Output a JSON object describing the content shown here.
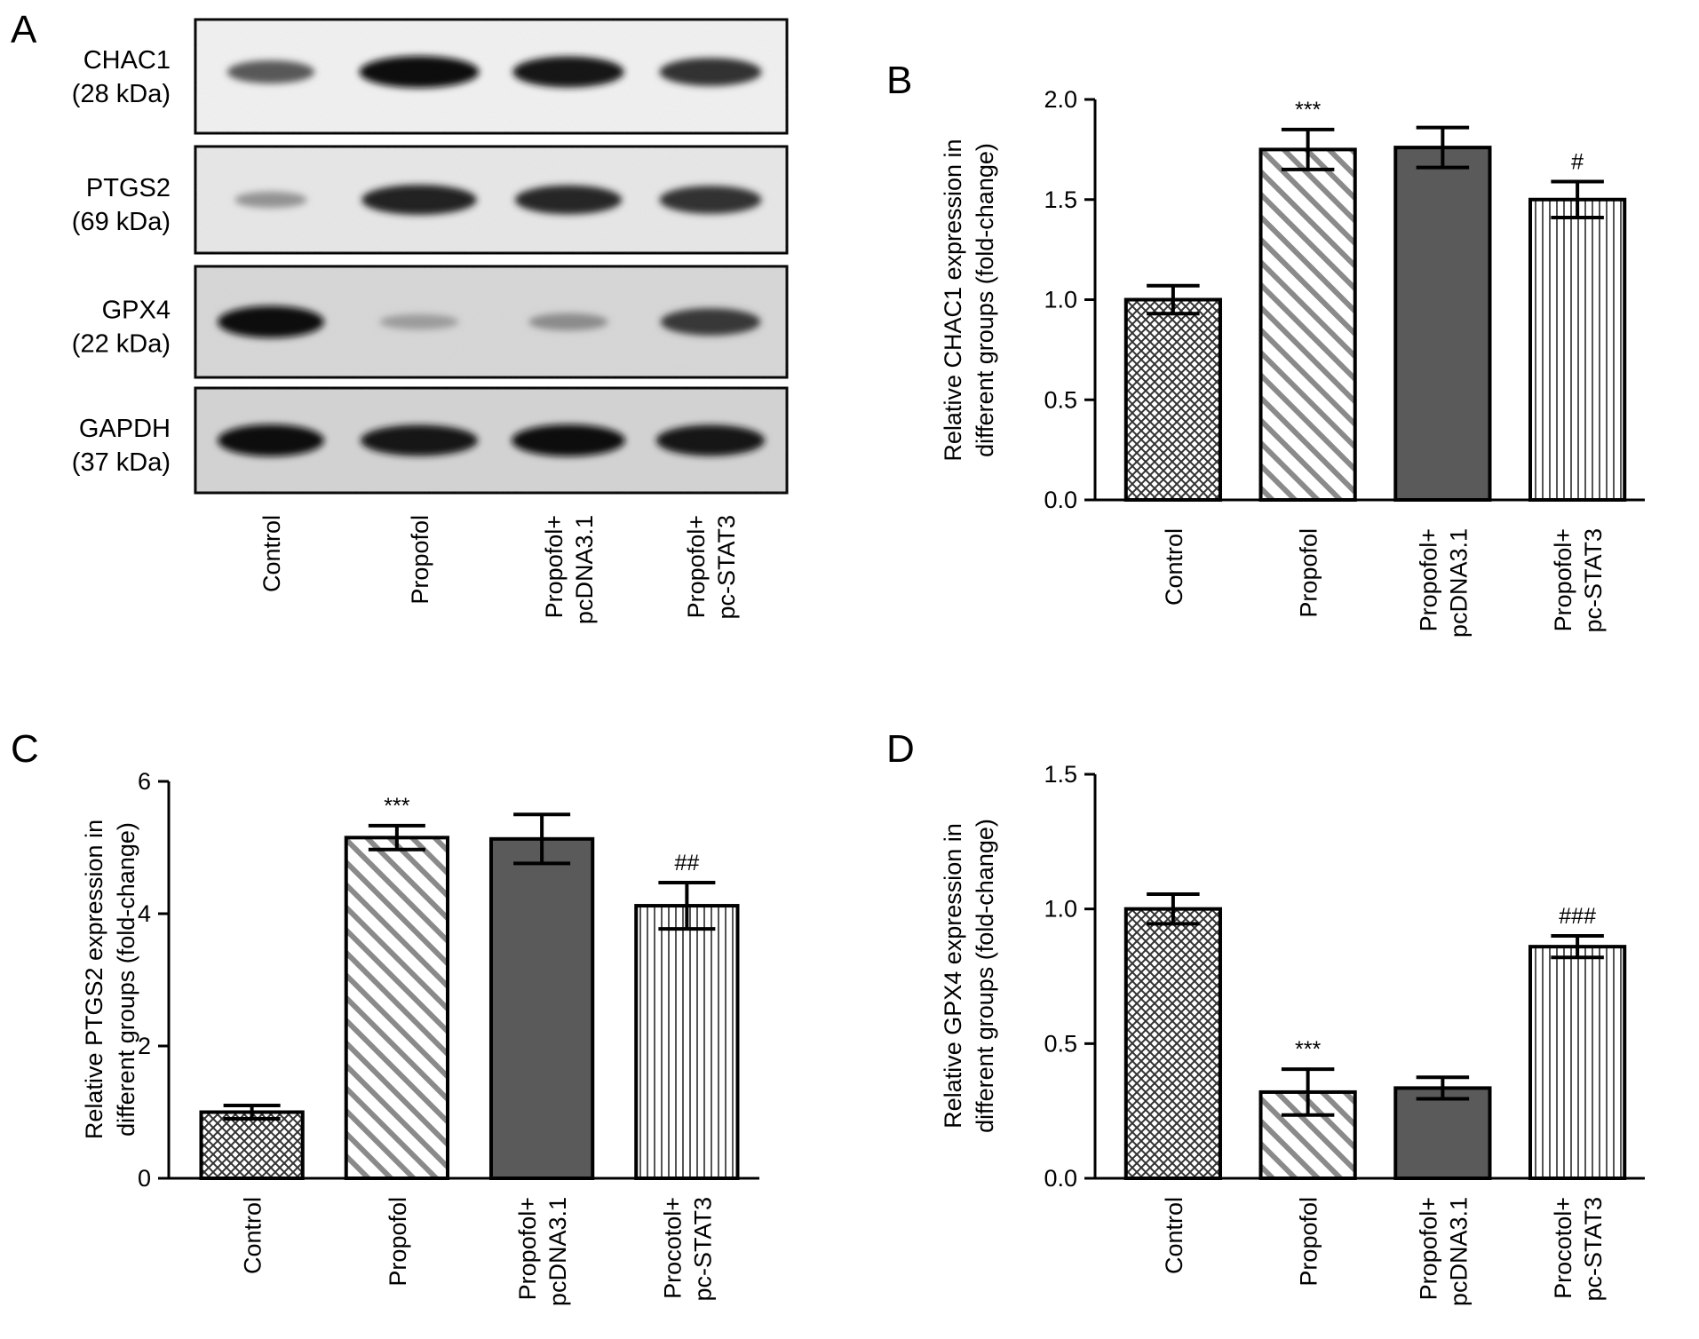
{
  "panels": {
    "a": "A",
    "b": "B",
    "c": "C",
    "d": "D"
  },
  "blot": {
    "bands": [
      {
        "name": "CHAC1",
        "size": "(28 kDa)",
        "intensities": [
          0.55,
          1.0,
          0.95,
          0.8
        ]
      },
      {
        "name": "PTGS2",
        "size": "(69 kDa)",
        "intensities": [
          0.2,
          0.9,
          0.85,
          0.8
        ]
      },
      {
        "name": "GPX4",
        "size": "(22 kDa)",
        "intensities": [
          1.0,
          0.15,
          0.25,
          0.75
        ]
      },
      {
        "name": "GAPDH",
        "size": "(37 kDa)",
        "intensities": [
          1.0,
          0.95,
          1.0,
          0.95
        ]
      }
    ],
    "lanes": [
      [
        "Control"
      ],
      [
        "Propofol"
      ],
      [
        "Propofol+",
        "pcDNA3.1"
      ],
      [
        "Propofol+",
        "pc-STAT3"
      ]
    ]
  },
  "chart_data": [
    {
      "type": "bar",
      "panel": "B",
      "categories": [
        [
          "Control"
        ],
        [
          "Propofol"
        ],
        [
          "Propofol+",
          "pcDNA3.1"
        ],
        [
          "Propofol+",
          "pc-STAT3"
        ]
      ],
      "values": [
        1.0,
        1.75,
        1.76,
        1.5
      ],
      "errors": [
        0.07,
        0.1,
        0.1,
        0.09
      ],
      "annotations": [
        "",
        "***",
        "",
        "#"
      ],
      "ylabel": [
        "Relative CHAC1 expression in",
        "different groups (fold-change)"
      ],
      "ylim": [
        0,
        2.0
      ],
      "yticks": [
        "0.0",
        "0.5",
        "1.0",
        "1.5",
        "2.0"
      ],
      "patterns": [
        "crosshatch",
        "diagonal",
        "solid",
        "vertical"
      ]
    },
    {
      "type": "bar",
      "panel": "C",
      "categories": [
        [
          "Control"
        ],
        [
          "Propofol"
        ],
        [
          "Propofol+",
          "pcDNA3.1"
        ],
        [
          "Procotol+",
          "pc-STAT3"
        ]
      ],
      "values": [
        1.0,
        5.15,
        5.13,
        4.12
      ],
      "errors": [
        0.1,
        0.18,
        0.37,
        0.35
      ],
      "annotations": [
        "",
        "***",
        "",
        "##"
      ],
      "ylabel": [
        "Relative PTGS2 expression in",
        "different groups (fold-change)"
      ],
      "ylim": [
        0,
        6
      ],
      "yticks": [
        "0",
        "2",
        "4",
        "6"
      ],
      "patterns": [
        "crosshatch",
        "diagonal",
        "solid",
        "vertical"
      ]
    },
    {
      "type": "bar",
      "panel": "D",
      "categories": [
        [
          "Control"
        ],
        [
          "Propofol"
        ],
        [
          "Propofol+",
          "pcDNA3.1"
        ],
        [
          "Procotol+",
          "pc-STAT3"
        ]
      ],
      "values": [
        1.0,
        0.32,
        0.335,
        0.86
      ],
      "errors": [
        0.055,
        0.085,
        0.04,
        0.04
      ],
      "annotations": [
        "",
        "***",
        "",
        "###"
      ],
      "ylabel": [
        "Relative GPX4 expression in",
        "different groups (fold-change)"
      ],
      "ylim": [
        0,
        1.5
      ],
      "yticks": [
        "0.0",
        "0.5",
        "1.0",
        "1.5"
      ],
      "patterns": [
        "crosshatch",
        "diagonal",
        "solid",
        "vertical"
      ]
    }
  ]
}
